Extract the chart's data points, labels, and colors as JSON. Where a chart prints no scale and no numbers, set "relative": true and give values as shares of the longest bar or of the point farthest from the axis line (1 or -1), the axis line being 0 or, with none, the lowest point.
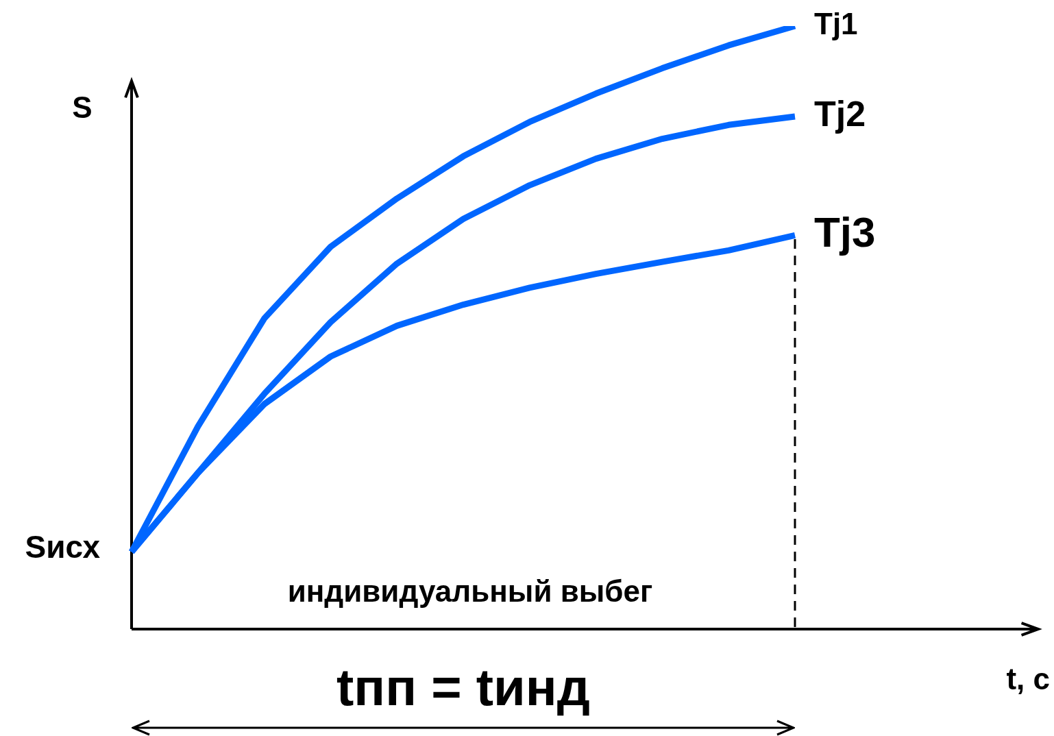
{
  "chart_data": {
    "type": "line",
    "relative": true,
    "ylabel": "S",
    "categories": [
      null,
      null,
      null,
      null,
      null,
      null,
      null,
      null,
      null,
      null,
      null
    ],
    "legend": false,
    "marker": "none",
    "line_style": "solid",
    "series": [
      {
        "name": "Tj1",
        "color": "#0066ff",
        "values": [
          0.128,
          0.336,
          0.515,
          0.634,
          0.714,
          0.784,
          0.841,
          0.888,
          0.93,
          0.968,
          1.0
        ]
      },
      {
        "name": "Tj2",
        "color": "#0066ff",
        "values": [
          0.128,
          0.259,
          0.39,
          0.509,
          0.606,
          0.68,
          0.736,
          0.78,
          0.813,
          0.836,
          0.85
        ]
      },
      {
        "name": "Tj3",
        "color": "#0066ff",
        "values": [
          0.128,
          0.259,
          0.373,
          0.452,
          0.503,
          0.538,
          0.566,
          0.589,
          0.609,
          0.628,
          0.653
        ]
      }
    ],
    "annotations": [
      "Sисх",
      "индивидуальный выбег",
      "tпп = tинд",
      "t, с"
    ]
  }
}
